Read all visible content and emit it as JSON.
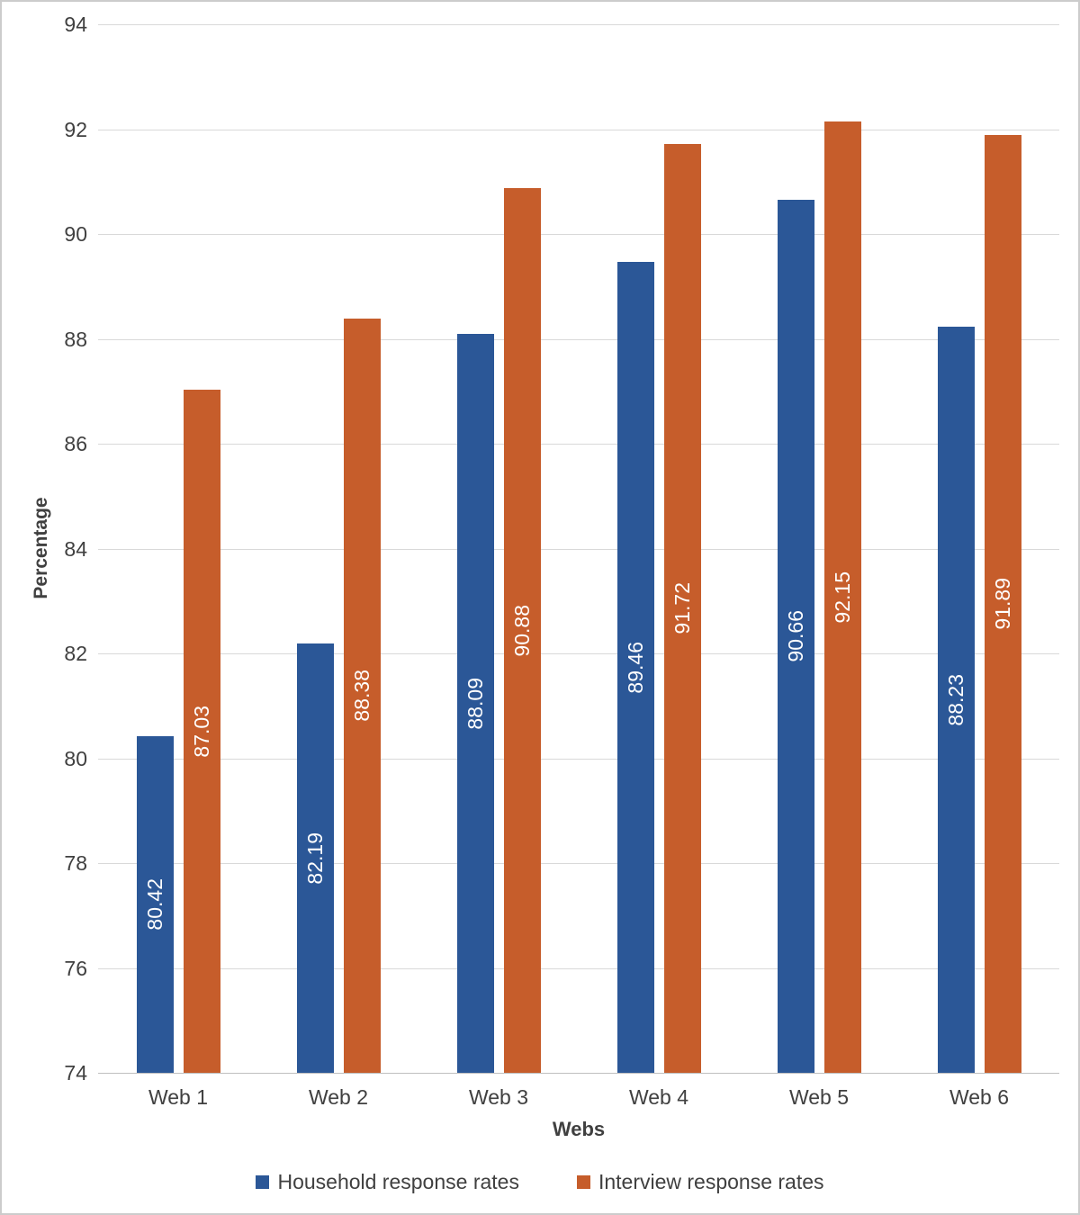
{
  "chart_data": {
    "type": "bar",
    "title": "",
    "xlabel": "Webs",
    "ylabel": "Percentage",
    "ylim": [
      74,
      94
    ],
    "ytick_step": 2,
    "yticks": [
      "94",
      "92",
      "90",
      "88",
      "86",
      "84",
      "82",
      "80",
      "78",
      "76",
      "74"
    ],
    "grid": true,
    "legend_position": "bottom",
    "categories": [
      "Web 1",
      "Web 2",
      "Web 3",
      "Web 4",
      "Web 5",
      "Web 6"
    ],
    "series": [
      {
        "name": "Household response rates",
        "color": "#2B5797",
        "values": [
          80.42,
          82.19,
          88.09,
          89.46,
          90.66,
          88.23
        ],
        "value_labels": [
          "80.42",
          "82.19",
          "88.09",
          "89.46",
          "90.66",
          "88.23"
        ]
      },
      {
        "name": "Interview response rates",
        "color": "#C65D2B",
        "values": [
          87.03,
          88.38,
          90.88,
          91.72,
          92.15,
          91.89
        ],
        "value_labels": [
          "87.03",
          "88.38",
          "90.88",
          "91.72",
          "92.15",
          "91.89"
        ]
      }
    ],
    "colors": {
      "grid": "#D9D9D9",
      "axis_line": "#BFBFBF",
      "text": "#404040",
      "data_label": "#FFFFFF",
      "border": "#CCCCCC"
    }
  }
}
